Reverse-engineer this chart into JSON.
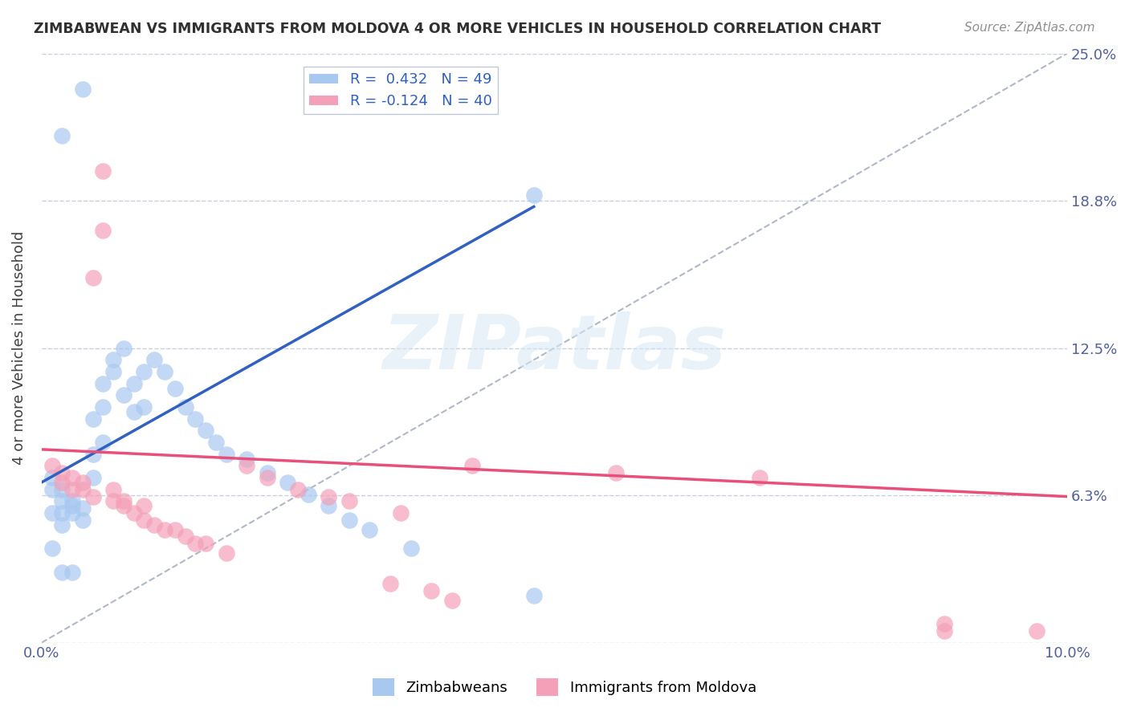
{
  "title": "ZIMBABWEAN VS IMMIGRANTS FROM MOLDOVA 4 OR MORE VEHICLES IN HOUSEHOLD CORRELATION CHART",
  "source": "Source: ZipAtlas.com",
  "ylabel": "4 or more Vehicles in Household",
  "xlim": [
    0.0,
    0.1
  ],
  "ylim": [
    0.0,
    0.25
  ],
  "blue_color": "#a8c8f0",
  "pink_color": "#f4a0b8",
  "blue_line_color": "#3060c0",
  "pink_line_color": "#e8507a",
  "dashed_line_color": "#b0b8c8",
  "background_color": "#ffffff",
  "watermark": "ZIPatlas",
  "blue_dots": [
    [
      0.001,
      0.065
    ],
    [
      0.001,
      0.07
    ],
    [
      0.001,
      0.055
    ],
    [
      0.002,
      0.06
    ],
    [
      0.002,
      0.065
    ],
    [
      0.002,
      0.055
    ],
    [
      0.002,
      0.05
    ],
    [
      0.002,
      0.215
    ],
    [
      0.003,
      0.055
    ],
    [
      0.003,
      0.06
    ],
    [
      0.003,
      0.058
    ],
    [
      0.003,
      0.03
    ],
    [
      0.004,
      0.052
    ],
    [
      0.004,
      0.057
    ],
    [
      0.004,
      0.235
    ],
    [
      0.005,
      0.07
    ],
    [
      0.005,
      0.08
    ],
    [
      0.005,
      0.095
    ],
    [
      0.006,
      0.085
    ],
    [
      0.006,
      0.1
    ],
    [
      0.006,
      0.11
    ],
    [
      0.007,
      0.115
    ],
    [
      0.007,
      0.12
    ],
    [
      0.008,
      0.105
    ],
    [
      0.008,
      0.125
    ],
    [
      0.009,
      0.098
    ],
    [
      0.009,
      0.11
    ],
    [
      0.01,
      0.1
    ],
    [
      0.01,
      0.115
    ],
    [
      0.011,
      0.12
    ],
    [
      0.012,
      0.115
    ],
    [
      0.013,
      0.108
    ],
    [
      0.014,
      0.1
    ],
    [
      0.015,
      0.095
    ],
    [
      0.016,
      0.09
    ],
    [
      0.017,
      0.085
    ],
    [
      0.018,
      0.08
    ],
    [
      0.02,
      0.078
    ],
    [
      0.022,
      0.072
    ],
    [
      0.024,
      0.068
    ],
    [
      0.026,
      0.063
    ],
    [
      0.028,
      0.058
    ],
    [
      0.03,
      0.052
    ],
    [
      0.032,
      0.048
    ],
    [
      0.036,
      0.04
    ],
    [
      0.048,
      0.02
    ],
    [
      0.048,
      0.19
    ],
    [
      0.001,
      0.04
    ],
    [
      0.002,
      0.03
    ]
  ],
  "pink_dots": [
    [
      0.001,
      0.075
    ],
    [
      0.002,
      0.068
    ],
    [
      0.002,
      0.072
    ],
    [
      0.003,
      0.065
    ],
    [
      0.003,
      0.07
    ],
    [
      0.004,
      0.068
    ],
    [
      0.004,
      0.065
    ],
    [
      0.005,
      0.062
    ],
    [
      0.005,
      0.155
    ],
    [
      0.006,
      0.2
    ],
    [
      0.006,
      0.175
    ],
    [
      0.007,
      0.06
    ],
    [
      0.007,
      0.065
    ],
    [
      0.008,
      0.058
    ],
    [
      0.008,
      0.06
    ],
    [
      0.009,
      0.055
    ],
    [
      0.01,
      0.052
    ],
    [
      0.01,
      0.058
    ],
    [
      0.011,
      0.05
    ],
    [
      0.012,
      0.048
    ],
    [
      0.013,
      0.048
    ],
    [
      0.014,
      0.045
    ],
    [
      0.015,
      0.042
    ],
    [
      0.016,
      0.042
    ],
    [
      0.018,
      0.038
    ],
    [
      0.02,
      0.075
    ],
    [
      0.022,
      0.07
    ],
    [
      0.025,
      0.065
    ],
    [
      0.028,
      0.062
    ],
    [
      0.03,
      0.06
    ],
    [
      0.034,
      0.025
    ],
    [
      0.035,
      0.055
    ],
    [
      0.038,
      0.022
    ],
    [
      0.04,
      0.018
    ],
    [
      0.042,
      0.075
    ],
    [
      0.056,
      0.072
    ],
    [
      0.07,
      0.07
    ],
    [
      0.088,
      0.008
    ],
    [
      0.088,
      0.005
    ],
    [
      0.097,
      0.005
    ]
  ],
  "blue_line_x": [
    0.0,
    0.048
  ],
  "blue_line_y": [
    0.068,
    0.185
  ],
  "pink_line_x": [
    0.0,
    0.1
  ],
  "pink_line_y": [
    0.082,
    0.062
  ]
}
